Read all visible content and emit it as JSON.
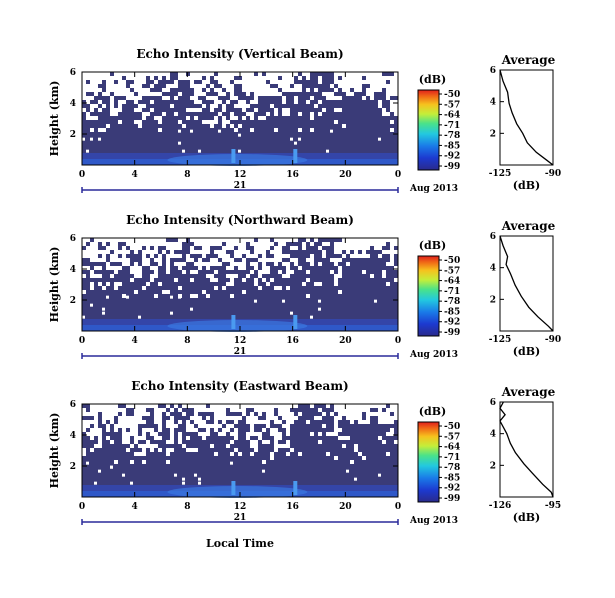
{
  "chart_data": [
    {
      "type": "heatmap",
      "title": "Echo Intensity (Vertical Beam)",
      "ylabel": "Height (km)",
      "x_ticks": [
        "0",
        "4",
        "8",
        "12",
        "16",
        "20",
        "0"
      ],
      "y_ticks": [
        "6",
        "4",
        "2"
      ],
      "date_day": "21",
      "date_label": "Aug 2013",
      "colorbar": {
        "unit": "(dB)",
        "ticks": [
          "-50",
          "-57",
          "-64",
          "-71",
          "-78",
          "-85",
          "-92",
          "-99"
        ]
      },
      "xlim": [
        0,
        24
      ],
      "ylim": [
        0,
        6
      ],
      "spikes_hour": [
        11.5,
        16.2
      ],
      "profile": {
        "title": "Average",
        "xlabel": "(dB)",
        "x_ticks": [
          "-125",
          "-90"
        ],
        "y_ticks": [
          "6",
          "4",
          "2"
        ],
        "xlim": [
          -125,
          -90
        ],
        "ylim": [
          0,
          6
        ],
        "points": [
          [
            -125,
            6.0
          ],
          [
            -123,
            5.3
          ],
          [
            -120,
            4.6
          ],
          [
            -119,
            3.9
          ],
          [
            -117,
            3.3
          ],
          [
            -114,
            2.6
          ],
          [
            -110,
            2.0
          ],
          [
            -107,
            1.4
          ],
          [
            -101,
            0.8
          ],
          [
            -94,
            0.3
          ],
          [
            -90,
            0.0
          ]
        ]
      }
    },
    {
      "type": "heatmap",
      "title": "Echo Intensity (Northward Beam)",
      "ylabel": "Height (km)",
      "x_ticks": [
        "0",
        "4",
        "8",
        "12",
        "16",
        "20",
        "0"
      ],
      "y_ticks": [
        "6",
        "4",
        "2"
      ],
      "date_day": "21",
      "date_label": "Aug 2013",
      "colorbar": {
        "unit": "(dB)",
        "ticks": [
          "-50",
          "-57",
          "-64",
          "-71",
          "-78",
          "-85",
          "-92",
          "-99"
        ]
      },
      "xlim": [
        0,
        24
      ],
      "ylim": [
        0,
        6
      ],
      "spikes_hour": [
        11.5,
        16.2
      ],
      "profile": {
        "title": "Average",
        "xlabel": "(dB)",
        "x_ticks": [
          "-125",
          "-90"
        ],
        "y_ticks": [
          "6",
          "4",
          "2"
        ],
        "xlim": [
          -125,
          -90
        ],
        "ylim": [
          0,
          6
        ],
        "points": [
          [
            -125,
            6.0
          ],
          [
            -123,
            5.4
          ],
          [
            -120,
            4.7
          ],
          [
            -121,
            4.2
          ],
          [
            -118,
            3.6
          ],
          [
            -115,
            2.9
          ],
          [
            -111,
            2.2
          ],
          [
            -106,
            1.5
          ],
          [
            -100,
            0.9
          ],
          [
            -93,
            0.3
          ],
          [
            -90,
            0.0
          ]
        ]
      }
    },
    {
      "type": "heatmap",
      "title": "Echo Intensity (Eastward Beam)",
      "ylabel": "Height (km)",
      "x_ticks": [
        "0",
        "4",
        "8",
        "12",
        "16",
        "20",
        "0"
      ],
      "y_ticks": [
        "6",
        "4",
        "2"
      ],
      "date_day": "21",
      "date_label": "Aug 2013",
      "colorbar": {
        "unit": "(dB)",
        "ticks": [
          "-50",
          "-57",
          "-64",
          "-71",
          "-78",
          "-85",
          "-92",
          "-99"
        ]
      },
      "xlim": [
        0,
        24
      ],
      "ylim": [
        0,
        6
      ],
      "spikes_hour": [
        11.5,
        16.2
      ],
      "profile": {
        "title": "Average",
        "xlabel": "(dB)",
        "x_ticks": [
          "-126",
          "-95"
        ],
        "y_ticks": [
          "6",
          "4",
          "2"
        ],
        "xlim": [
          -126,
          -95
        ],
        "ylim": [
          0,
          6
        ],
        "points": [
          [
            -124,
            6.0
          ],
          [
            -126,
            5.6
          ],
          [
            -123,
            5.2
          ],
          [
            -126,
            4.8
          ],
          [
            -124,
            4.4
          ],
          [
            -122,
            4.0
          ],
          [
            -120,
            3.4
          ],
          [
            -117,
            2.8
          ],
          [
            -112,
            2.1
          ],
          [
            -107,
            1.5
          ],
          [
            -101,
            0.8
          ],
          [
            -96,
            0.3
          ],
          [
            -95,
            0.0
          ]
        ]
      }
    }
  ],
  "xlabel": "Local Time"
}
